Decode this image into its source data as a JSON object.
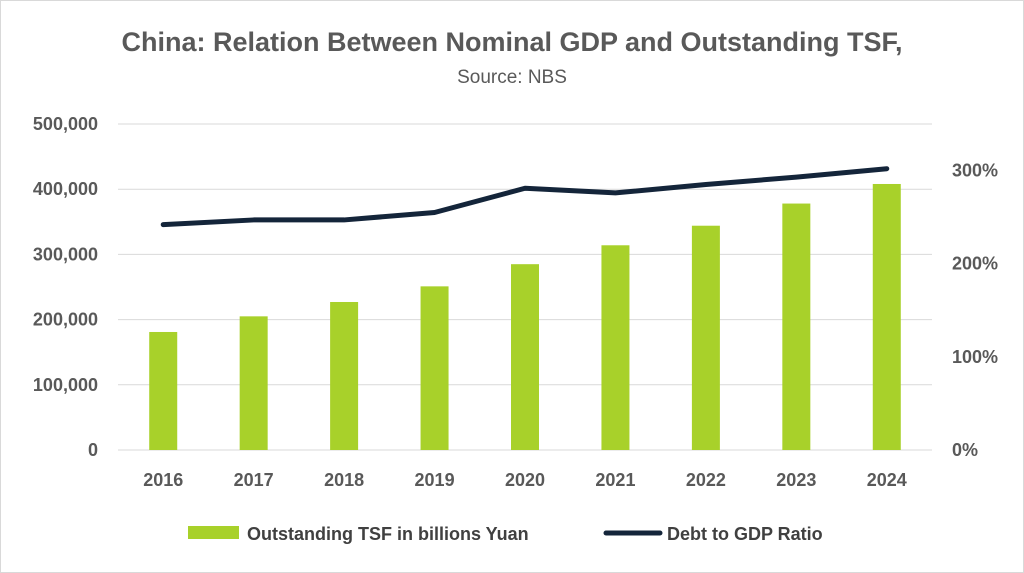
{
  "chart_data": {
    "type": "bar",
    "title": "China: Relation Between Nominal GDP and Outstanding TSF,",
    "subtitle": "Source: NBS",
    "categories": [
      "2016",
      "2017",
      "2018",
      "2019",
      "2020",
      "2021",
      "2022",
      "2023",
      "2024"
    ],
    "series": [
      {
        "name": "Outstanding TSF in billions Yuan",
        "type": "bar",
        "axis": "left",
        "color": "#a8d12a",
        "values": [
          181000,
          205000,
          227000,
          251000,
          285000,
          314000,
          344000,
          378000,
          408000
        ]
      },
      {
        "name": "Debt to GDP Ratio",
        "type": "line",
        "axis": "right",
        "color": "#14253a",
        "values": [
          242,
          247,
          247,
          255,
          281,
          276,
          285,
          293,
          302
        ]
      }
    ],
    "y_left": {
      "ylim": [
        0,
        500000
      ],
      "ticks": [
        0,
        100000,
        200000,
        300000,
        400000,
        500000
      ],
      "tick_labels": [
        "0",
        "100,000",
        "200,000",
        "300,000",
        "400,000",
        "500,000"
      ]
    },
    "y_right": {
      "ylim": [
        0,
        350
      ],
      "ticks": [
        0,
        100,
        200,
        300
      ],
      "tick_labels": [
        "0%",
        "100%",
        "200%",
        "300%"
      ]
    },
    "grid": true,
    "legend_position": "bottom"
  }
}
